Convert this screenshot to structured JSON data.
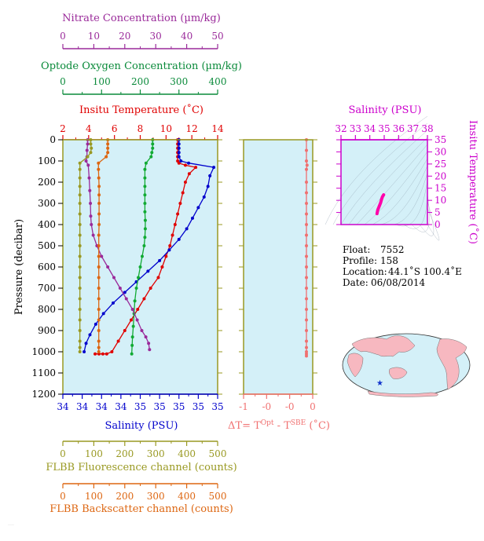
{
  "chart_data": {
    "type": "line",
    "title": "",
    "axes": {
      "nitrate": {
        "label": "Nitrate Concentration (µm/kg)",
        "ticks": [
          "0",
          "10",
          "20",
          "30",
          "40",
          "50"
        ],
        "range": [
          0,
          50
        ],
        "color": "#9a2a9a"
      },
      "oxygen": {
        "label": "Optode Oxygen Concentration (µm/kg)",
        "ticks": [
          "0",
          "100",
          "200",
          "300",
          "400"
        ],
        "range": [
          0,
          400
        ],
        "color": "#0a8a3a"
      },
      "temperature": {
        "label": "Insitu Temperature (˚C)",
        "ticks": [
          "2",
          "4",
          "6",
          "8",
          "10",
          "12",
          "14"
        ],
        "range": [
          2,
          14
        ],
        "color": "#e00000"
      },
      "pressure": {
        "label": "Pressure (decibar)",
        "ticks": [
          "0",
          "100",
          "200",
          "300",
          "400",
          "500",
          "600",
          "700",
          "800",
          "900",
          "1000",
          "1100",
          "1200"
        ],
        "range": [
          0,
          1200
        ],
        "inverted": true
      },
      "salinity": {
        "label": "Salinity (PSU)",
        "ticks": [
          "34",
          "34",
          "34",
          "34",
          "35",
          "35",
          "35",
          "35",
          "35"
        ],
        "range": [
          34.2,
          35.0
        ],
        "color": "#0000cc"
      },
      "fluorescence": {
        "label": "FLBB Fluorescence channel (counts)",
        "ticks": [
          "0",
          "100",
          "200",
          "300",
          "400",
          "500"
        ],
        "range": [
          0,
          500
        ],
        "color": "#999922"
      },
      "backscatter": {
        "label": "FLBB Backscatter channel (counts)",
        "ticks": [
          "0",
          "100",
          "200",
          "300",
          "400",
          "500"
        ],
        "range": [
          0,
          500
        ],
        "color": "#dd6611"
      },
      "delta_t": {
        "label_parts": [
          "ΔT= T",
          "Opt",
          " - T",
          "SBE",
          " (˚C)"
        ],
        "ticks": [
          "-1",
          "-0",
          "-0",
          "0"
        ],
        "range": [
          -1.0,
          0.1
        ],
        "color": "#f07070"
      },
      "ts_salinity": {
        "label": "Salinity (PSU)",
        "ticks": [
          "32",
          "33",
          "34",
          "35",
          "36",
          "37",
          "38"
        ],
        "range": [
          32,
          38
        ],
        "color": "#cc00cc"
      },
      "ts_temperature": {
        "label": "Insitu Temperature (˚C)",
        "ticks": [
          "0",
          "5",
          "10",
          "15",
          "20",
          "25",
          "30",
          "35"
        ],
        "range": [
          0,
          35
        ],
        "color": "#cc00cc"
      }
    },
    "series": [
      {
        "name": "Insitu Temperature",
        "axis": "temperature",
        "color": "#e00000",
        "x": [
          10.9,
          10.9,
          10.9,
          10.9,
          10.9,
          10.9,
          11.0,
          11.5,
          12.3,
          11.8,
          11.5,
          11.3,
          11.1,
          10.9,
          10.7,
          10.5,
          10.3,
          10.0,
          9.7,
          9.4,
          8.8,
          8.3,
          7.8,
          7.3,
          6.8,
          6.3,
          5.8,
          5.4,
          5.1,
          4.8,
          4.5
        ],
        "y": [
          0,
          20,
          40,
          60,
          80,
          100,
          110,
          120,
          130,
          160,
          200,
          250,
          300,
          350,
          400,
          450,
          500,
          550,
          600,
          650,
          700,
          750,
          800,
          850,
          900,
          950,
          1000,
          1010,
          1010,
          1010,
          1010
        ]
      },
      {
        "name": "Salinity",
        "axis": "salinity",
        "color": "#0000cc",
        "x": [
          34.8,
          34.8,
          34.8,
          34.8,
          34.8,
          34.81,
          34.85,
          34.98,
          34.96,
          34.95,
          34.93,
          34.9,
          34.87,
          34.84,
          34.8,
          34.75,
          34.7,
          34.64,
          34.58,
          34.52,
          34.46,
          34.41,
          34.37,
          34.34,
          34.32,
          34.31
        ],
        "y": [
          0,
          20,
          40,
          60,
          80,
          100,
          110,
          130,
          170,
          220,
          270,
          320,
          370,
          420,
          470,
          520,
          570,
          620,
          670,
          720,
          770,
          820,
          870,
          920,
          960,
          1000
        ]
      },
      {
        "name": "Oxygen",
        "axis": "oxygen",
        "color": "#11aa33",
        "x": [
          232,
          232,
          232,
          230,
          228,
          215,
          212,
          212,
          212,
          212,
          212,
          212,
          213,
          213,
          212,
          210,
          205,
          200,
          195,
          190,
          186,
          184,
          182,
          180,
          179,
          178
        ],
        "y": [
          0,
          20,
          40,
          60,
          80,
          110,
          140,
          180,
          220,
          260,
          300,
          340,
          380,
          420,
          460,
          500,
          550,
          600,
          650,
          700,
          760,
          820,
          880,
          930,
          970,
          1010
        ]
      },
      {
        "name": "Nitrate",
        "axis": "nitrate",
        "color": "#9a2a9a",
        "x": [
          8.0,
          8.0,
          7.8,
          7.8,
          7.5,
          8.2,
          8.5,
          8.7,
          8.9,
          9.0,
          9.2,
          9.8,
          11.0,
          12.5,
          14.5,
          16.5,
          18.5,
          20.5,
          22.5,
          24.0,
          25.5,
          26.8,
          27.7,
          28.0
        ],
        "y": [
          0,
          20,
          50,
          80,
          100,
          120,
          180,
          240,
          300,
          360,
          400,
          450,
          500,
          550,
          600,
          650,
          700,
          750,
          800,
          850,
          900,
          930,
          960,
          990
        ]
      },
      {
        "name": "FLBB Fluorescence",
        "axis": "fluorescence",
        "color": "#999922",
        "x": [
          90,
          90,
          92,
          90,
          80,
          55,
          55,
          55,
          55,
          55,
          55,
          55,
          55,
          55,
          55,
          55,
          55,
          55,
          55,
          55,
          55,
          55,
          55,
          55,
          55,
          55
        ],
        "y": [
          0,
          20,
          40,
          60,
          80,
          110,
          140,
          180,
          220,
          260,
          300,
          350,
          400,
          450,
          500,
          550,
          600,
          650,
          700,
          750,
          800,
          850,
          900,
          950,
          980,
          1000
        ]
      },
      {
        "name": "FLBB Backscatter",
        "axis": "backscatter",
        "color": "#dd6611",
        "x": [
          145,
          145,
          145,
          145,
          140,
          115,
          115,
          116,
          117,
          117,
          117,
          117,
          117,
          116,
          116,
          116,
          116,
          116,
          116,
          116,
          116,
          116,
          116,
          116,
          116,
          116
        ],
        "y": [
          0,
          20,
          40,
          60,
          80,
          110,
          140,
          180,
          220,
          260,
          300,
          350,
          400,
          450,
          500,
          550,
          600,
          650,
          700,
          750,
          800,
          850,
          900,
          950,
          980,
          1000
        ]
      },
      {
        "name": "Delta T",
        "axis": "delta_t",
        "color": "#f07070",
        "x": [
          0,
          0,
          0,
          0.01,
          0,
          0,
          0,
          0,
          0,
          0,
          0,
          0,
          0,
          0,
          0,
          0,
          0,
          0,
          0,
          0,
          0,
          0,
          0,
          0,
          0
        ],
        "y": [
          0,
          50,
          100,
          120,
          140,
          200,
          250,
          300,
          350,
          400,
          450,
          500,
          550,
          600,
          650,
          700,
          750,
          800,
          850,
          900,
          950,
          980,
          1000,
          1010,
          1020
        ]
      }
    ],
    "ts_series": {
      "color": "#ff00aa",
      "salinity": [
        34.5,
        34.55,
        34.65,
        34.75,
        34.82,
        34.88,
        34.93,
        34.96
      ],
      "temperature": [
        4.5,
        6,
        7.5,
        9,
        10.5,
        11.5,
        12,
        12.3
      ]
    },
    "grid": false,
    "background": "#d4f0f8"
  },
  "info": {
    "float_label": "Float:",
    "float_value": "7552",
    "profile_label": "Profile:",
    "profile_value": "158",
    "location_label": "Location:",
    "location_value": "44.1˚S  100.4˚E",
    "date_label": "Date:",
    "date_value": "06/08/2014"
  },
  "map": {
    "water": "#d4f0f8",
    "land": "#f7b8c0",
    "marker": "#1133cc",
    "marker_lon": 100.4,
    "marker_lat": -44.1
  }
}
